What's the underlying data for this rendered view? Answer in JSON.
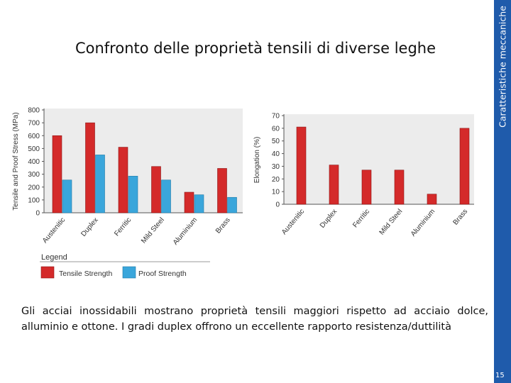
{
  "slide": {
    "title": "Confronto delle proprietà  tensili di diverse  leghe",
    "sidebar_label": "Caratteristiche meccaniche",
    "page_number": "15",
    "caption": "Gli acciai inossidabili mostrano proprietà tensili maggiori rispetto ad acciaio dolce, alluminio e ottone. I gradi duplex offrono un eccellente rapporto resistenza/duttilità"
  },
  "colors": {
    "sidebar": "#1f5bab",
    "tensile": "#d42a2a",
    "proof": "#3aa6db",
    "plot_bg": "#ececec"
  },
  "legend": {
    "title": "Legend",
    "tensile_label": "Tensile Strength",
    "proof_label": "Proof Strength"
  },
  "chart_data": [
    {
      "type": "bar",
      "title": "",
      "xlabel": "",
      "ylabel": "Tensile and Proof Stress (MPa)",
      "ylim": [
        0,
        800
      ],
      "yticks": [
        0,
        100,
        200,
        300,
        400,
        500,
        600,
        700,
        800
      ],
      "categories": [
        "Austenitic",
        "Duplex",
        "Ferritic",
        "Mild Steel",
        "Aluminium",
        "Brass"
      ],
      "series": [
        {
          "name": "Tensile Strength",
          "values": [
            600,
            700,
            510,
            360,
            160,
            345
          ]
        },
        {
          "name": "Proof Strength",
          "values": [
            255,
            450,
            285,
            255,
            140,
            120
          ]
        }
      ]
    },
    {
      "type": "bar",
      "title": "",
      "xlabel": "",
      "ylabel": "Elongation (%)",
      "ylim": [
        0,
        70
      ],
      "yticks": [
        0,
        10,
        20,
        30,
        40,
        50,
        60,
        70
      ],
      "categories": [
        "Austenitic",
        "Duplex",
        "Ferritic",
        "Mild Steel",
        "Aluminium",
        "Brass"
      ],
      "series": [
        {
          "name": "Elongation",
          "values": [
            61,
            31,
            27,
            27,
            8,
            60
          ]
        }
      ]
    }
  ]
}
